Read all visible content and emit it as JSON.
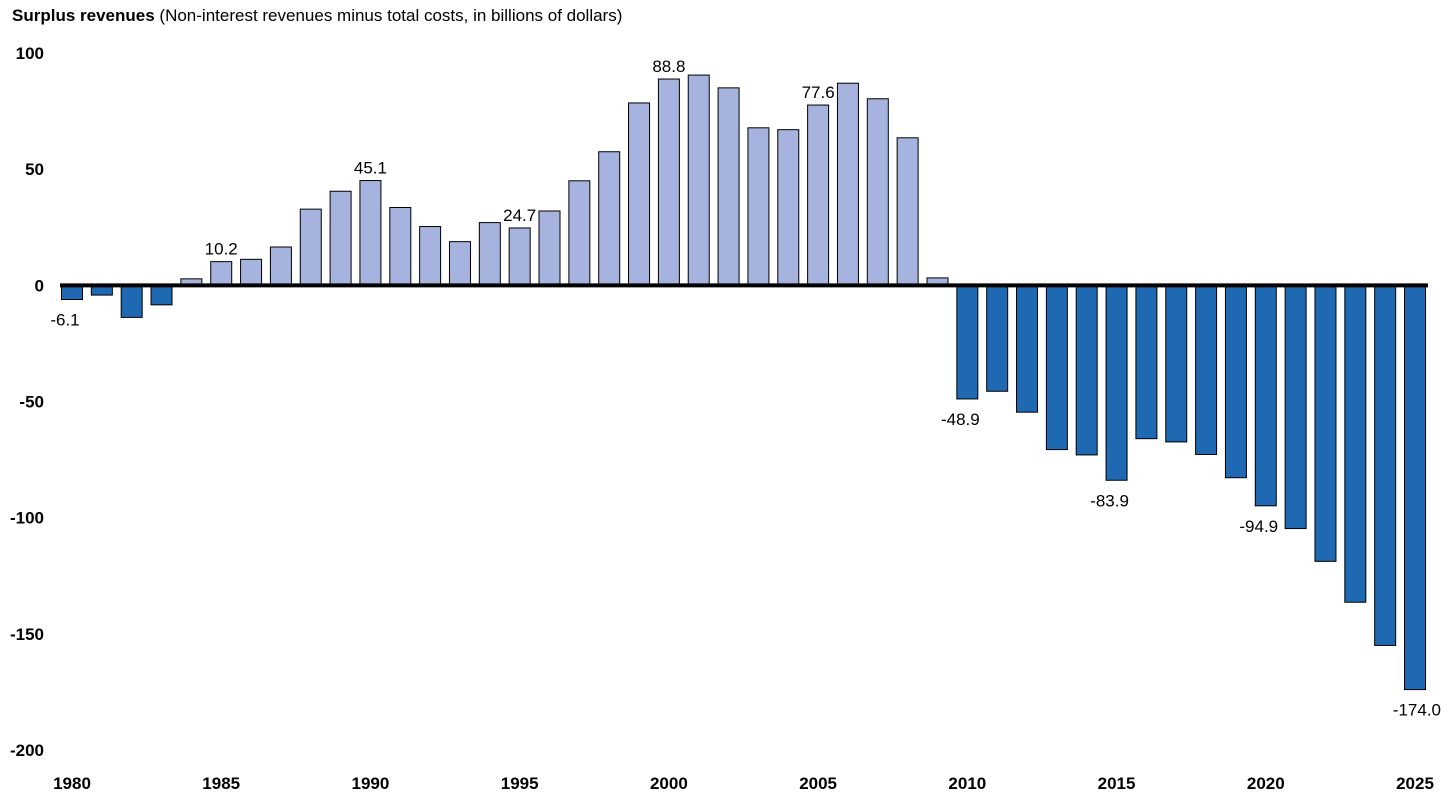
{
  "chart_data": {
    "type": "bar",
    "title": "Surplus revenues",
    "subtitle": "(Non-interest revenues minus total costs, in billions of dollars)",
    "xlabel": "",
    "ylabel": "",
    "ylim": [
      -200,
      100
    ],
    "yticks": [
      100,
      50,
      0,
      -50,
      -100,
      -150,
      -200
    ],
    "xticks": [
      1980,
      1985,
      1990,
      1995,
      2000,
      2005,
      2010,
      2015,
      2020,
      2025
    ],
    "grid": false,
    "colors": {
      "positive": "#a5b3de",
      "negative": "#1f69b3",
      "outline": "#000000"
    },
    "categories": [
      1980,
      1981,
      1982,
      1983,
      1984,
      1985,
      1986,
      1987,
      1988,
      1989,
      1990,
      1991,
      1992,
      1993,
      1994,
      1995,
      1996,
      1997,
      1998,
      1999,
      2000,
      2001,
      2002,
      2003,
      2004,
      2005,
      2006,
      2007,
      2008,
      2009,
      2010,
      2011,
      2012,
      2013,
      2014,
      2015,
      2016,
      2017,
      2018,
      2019,
      2020,
      2021,
      2022,
      2023,
      2024,
      2025
    ],
    "values": [
      -6.1,
      -4.2,
      -13.8,
      -8.4,
      2.8,
      10.2,
      11.2,
      16.5,
      32.8,
      40.5,
      45.1,
      33.5,
      25.3,
      18.8,
      27.0,
      24.7,
      32.0,
      45.0,
      57.5,
      78.5,
      88.8,
      90.5,
      85.0,
      67.8,
      67.0,
      77.6,
      87.0,
      80.3,
      63.5,
      3.2,
      -48.9,
      -45.6,
      -54.6,
      -70.7,
      -73.0,
      -83.9,
      -66.0,
      -67.4,
      -72.8,
      -82.8,
      -94.9,
      -104.7,
      -118.8,
      -136.4,
      -155.0,
      -174.0
    ],
    "data_labels": [
      {
        "year": 1980,
        "text": "-6.1"
      },
      {
        "year": 1985,
        "text": "10.2"
      },
      {
        "year": 1990,
        "text": "45.1"
      },
      {
        "year": 1995,
        "text": "24.7"
      },
      {
        "year": 2000,
        "text": "88.8"
      },
      {
        "year": 2005,
        "text": "77.6"
      },
      {
        "year": 2010,
        "text": "-48.9"
      },
      {
        "year": 2015,
        "text": "-83.9"
      },
      {
        "year": 2020,
        "text": "-94.9"
      },
      {
        "year": 2025,
        "text": "-174.0"
      }
    ]
  }
}
